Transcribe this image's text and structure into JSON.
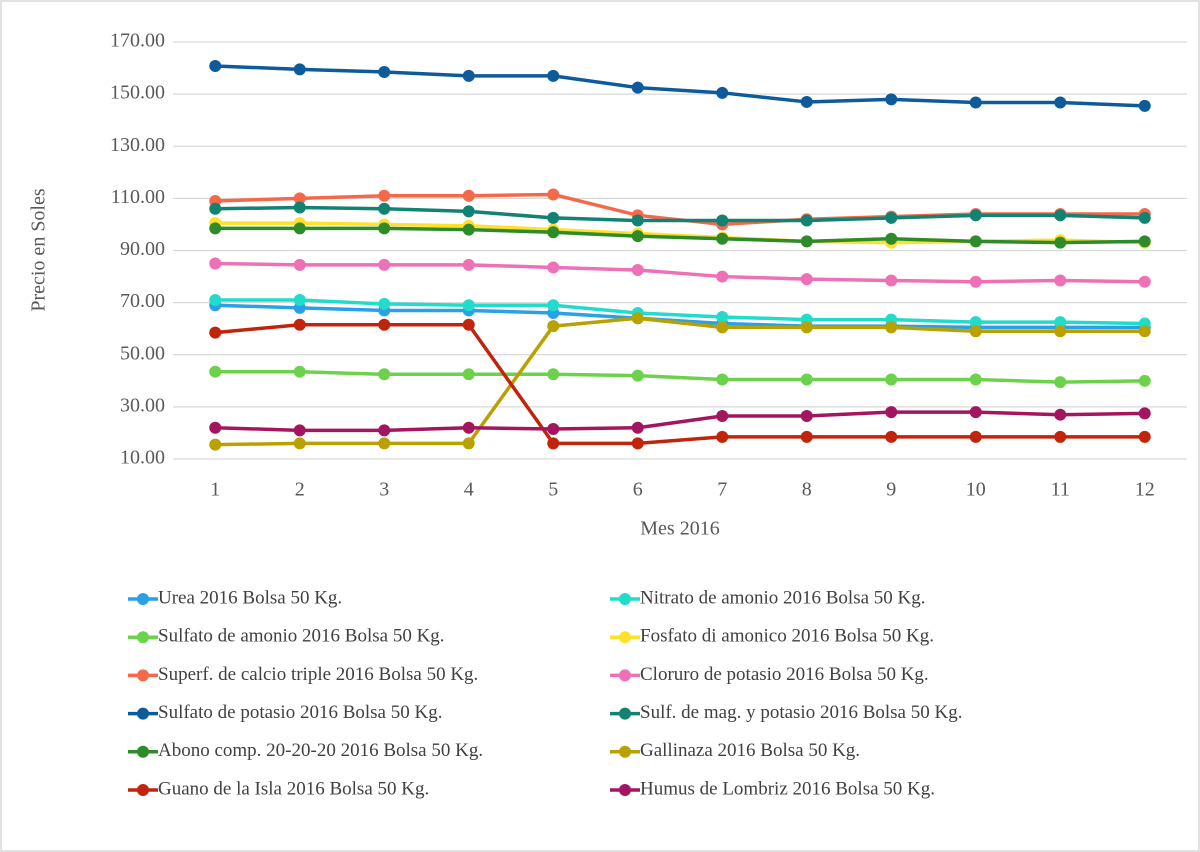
{
  "chart_data": {
    "type": "line",
    "y_label": "Precio en Soles",
    "x_label": "Mes 2016",
    "categories": [
      "1",
      "2",
      "3",
      "4",
      "5",
      "6",
      "7",
      "8",
      "9",
      "10",
      "11",
      "12"
    ],
    "ylim": [
      10,
      170
    ],
    "yticks": [
      {
        "value": 10,
        "label": "10.00"
      },
      {
        "value": 30,
        "label": "30.00"
      },
      {
        "value": 50,
        "label": "50.00"
      },
      {
        "value": 70,
        "label": "70.00"
      },
      {
        "value": 90,
        "label": "90.00"
      },
      {
        "value": 110,
        "label": "110.00"
      },
      {
        "value": 130,
        "label": "130.00"
      },
      {
        "value": 150,
        "label": "150.00"
      },
      {
        "value": 170,
        "label": "170.00"
      }
    ],
    "grid": true,
    "legend": "bottom",
    "series": [
      {
        "name": "Urea 2016 Bolsa 50 Kg.",
        "color": "#2aa0e6",
        "values": [
          69,
          68,
          67,
          67,
          66,
          64,
          62,
          61,
          61,
          60.5,
          60.5,
          60.5
        ]
      },
      {
        "name": "Nitrato de amonio 2016 Bolsa 50 Kg.",
        "color": "#22dccb",
        "values": [
          71,
          71,
          69.5,
          69,
          69,
          66,
          64.5,
          63.5,
          63.5,
          62.5,
          62.5,
          62
        ]
      },
      {
        "name": "Sulfato de amonio 2016 Bolsa 50 Kg.",
        "color": "#6cd24c",
        "values": [
          43.5,
          43.5,
          42.5,
          42.5,
          42.5,
          42,
          40.5,
          40.5,
          40.5,
          40.5,
          39.5,
          40
        ]
      },
      {
        "name": "Fosfato di amonico 2016 Bolsa 50 Kg.",
        "color": "#ffe02a",
        "values": [
          100.5,
          100.5,
          100,
          99.5,
          98,
          96.5,
          95,
          93.5,
          93,
          93.5,
          94,
          93
        ]
      },
      {
        "name": "Superf. de calcio triple 2016 Bolsa 50 Kg.",
        "color": "#f4694a",
        "values": [
          109,
          110,
          111,
          111,
          111.5,
          103.5,
          100,
          102,
          103,
          104,
          104,
          104
        ]
      },
      {
        "name": "Cloruro de potasio 2016 Bolsa 50 Kg.",
        "color": "#ee70b6",
        "values": [
          85,
          84.5,
          84.5,
          84.5,
          83.5,
          82.5,
          80,
          79,
          78.5,
          78,
          78.5,
          78
        ]
      },
      {
        "name": "Sulfato de potasio 2016 Bolsa 50 Kg.",
        "color": "#0e5b9b",
        "values": [
          160.8,
          159.5,
          158.5,
          157,
          157,
          152.5,
          150.5,
          147,
          148,
          146.8,
          146.8,
          145.5
        ]
      },
      {
        "name": "Sulf. de mag. y potasio 2016 Bolsa 50 Kg.",
        "color": "#128272",
        "values": [
          106,
          106.5,
          106,
          105,
          102.5,
          101.5,
          101.5,
          101.5,
          102.5,
          103.5,
          103.5,
          102.5
        ]
      },
      {
        "name": "Abono comp. 20-20-20 2016 Bolsa 50 Kg.",
        "color": "#2e8b2a",
        "values": [
          98.5,
          98.5,
          98.5,
          98,
          97,
          95.5,
          94.5,
          93.5,
          94.5,
          93.5,
          93,
          93.5
        ]
      },
      {
        "name": "Gallinaza 2016 Bolsa 50 Kg.",
        "color": "#b8a100",
        "values": [
          15.5,
          16,
          16,
          16,
          61,
          64,
          60.5,
          60.5,
          60.5,
          59,
          59,
          59
        ]
      },
      {
        "name": "Guano de la Isla 2016 Bolsa 50 Kg.",
        "color": "#c0250c",
        "values": [
          58.5,
          61.5,
          61.5,
          61.5,
          16,
          16,
          18.5,
          18.5,
          18.5,
          18.5,
          18.5,
          18.5
        ]
      },
      {
        "name": "Humus de Lombriz 2016 Bolsa 50 Kg.",
        "color": "#a3165f",
        "values": [
          22,
          21,
          21,
          22,
          21.5,
          22,
          26.5,
          26.5,
          28,
          28,
          27,
          27.5
        ]
      }
    ]
  }
}
